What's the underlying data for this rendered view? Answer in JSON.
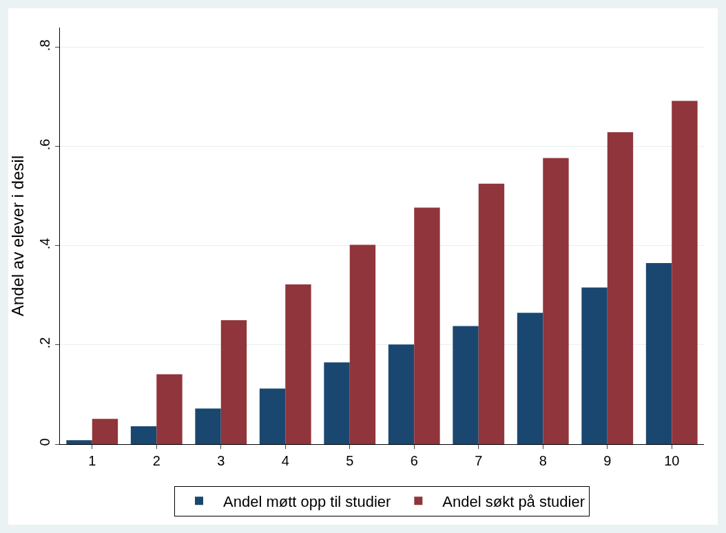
{
  "chart_data": {
    "type": "bar",
    "ylabel": "Andel av elever i desil",
    "categories": [
      "1",
      "2",
      "3",
      "4",
      "5",
      "6",
      "7",
      "8",
      "9",
      "10"
    ],
    "series": [
      {
        "name": "Andel møtt opp til studier",
        "color": "#1a476f",
        "values": [
          0.008,
          0.036,
          0.072,
          0.112,
          0.165,
          0.201,
          0.238,
          0.265,
          0.316,
          0.365
        ]
      },
      {
        "name": "Andel søkt på studier",
        "color": "#90353b",
        "values": [
          0.051,
          0.141,
          0.25,
          0.322,
          0.402,
          0.477,
          0.525,
          0.577,
          0.629,
          0.692
        ]
      }
    ],
    "ylim": [
      0,
      0.84
    ],
    "yticks": [
      0,
      {
        "value": 0.2,
        "label": ".2"
      },
      {
        "value": 0.4,
        "label": ".4"
      },
      {
        "value": 0.6,
        "label": ".6"
      },
      {
        "value": 0.8,
        "label": ".8"
      }
    ],
    "grid": "y",
    "legend": "bottom"
  }
}
